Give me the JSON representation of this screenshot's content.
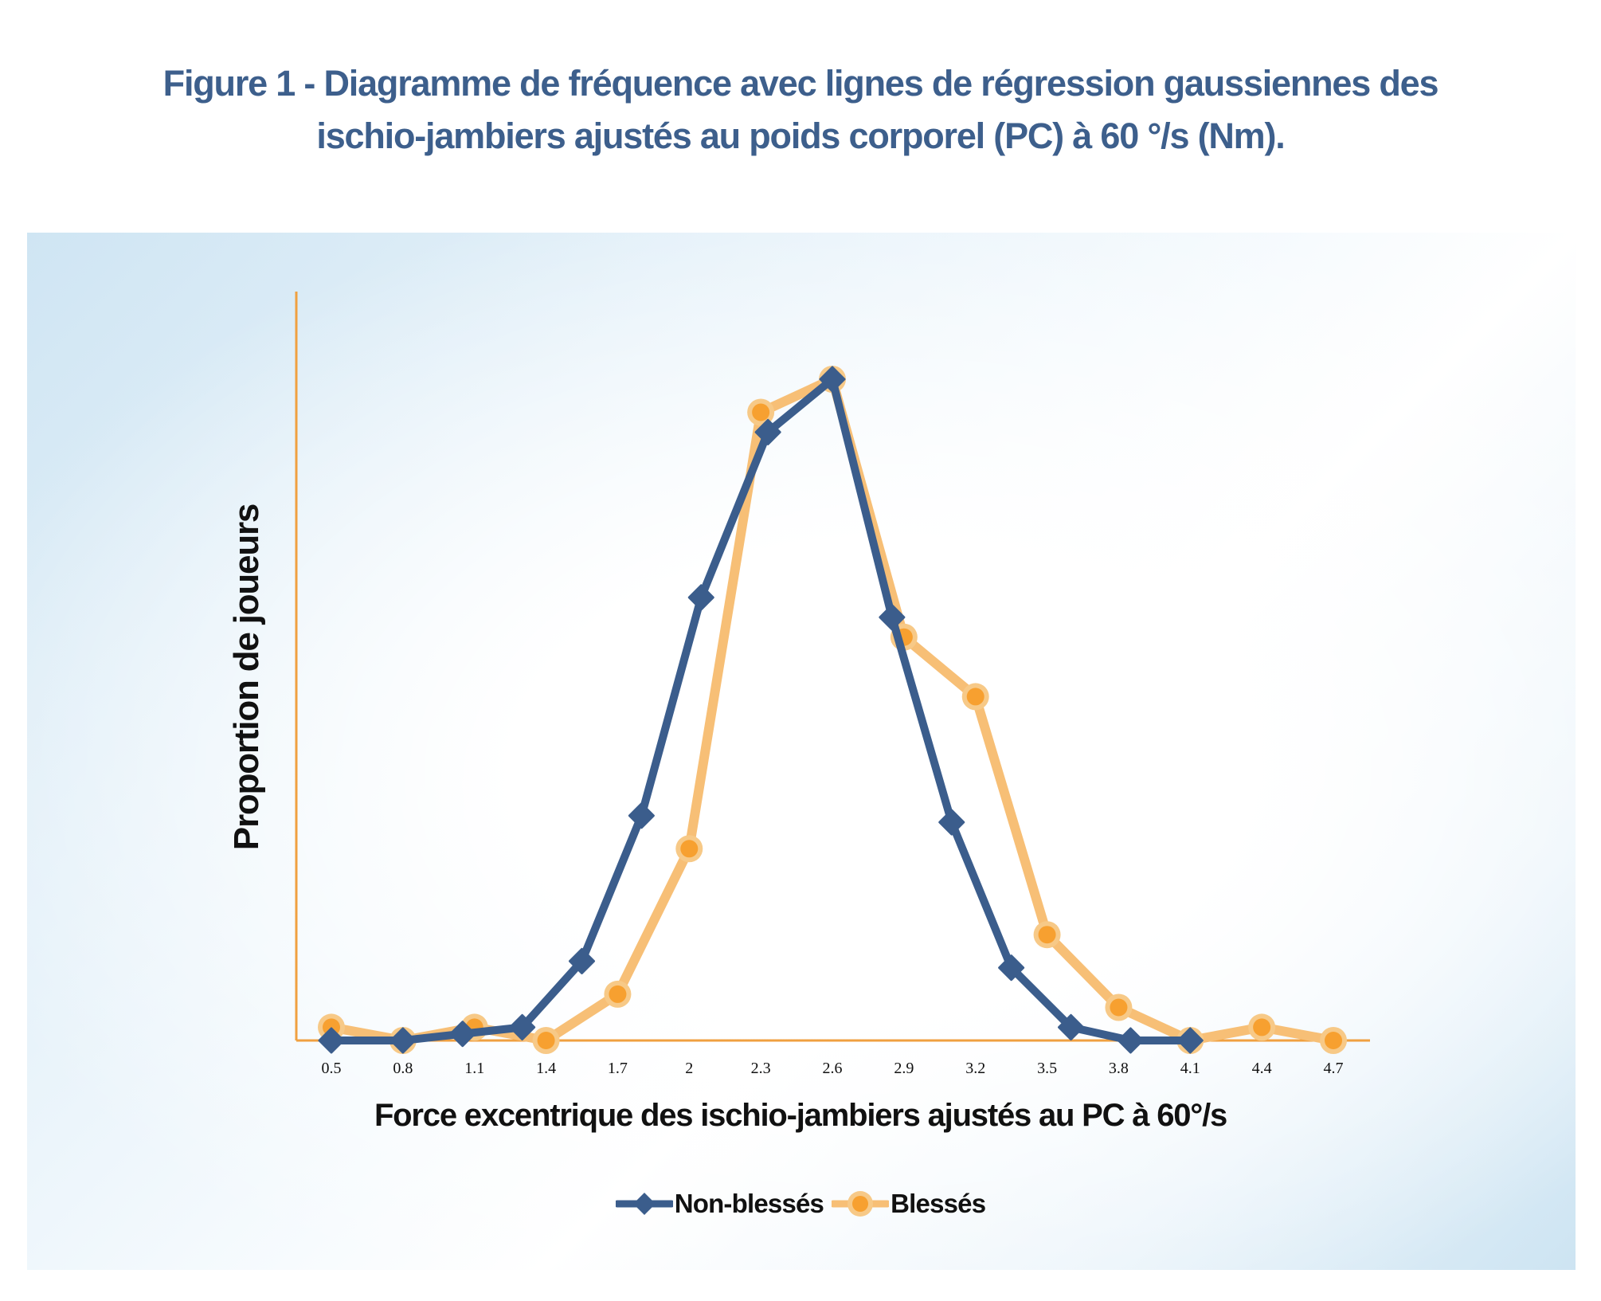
{
  "chart_data": {
    "type": "line",
    "title": "Figure 1 - Diagramme de fréquence avec lignes de régression gaussiennes des ischio-jambiers ajustés au poids corporel (PC) à 60 °/s (Nm).",
    "title_lines": [
      "Figure 1 - Diagramme de fréquence avec lignes de régression gaussiennes des",
      "ischio-jambiers ajustés au poids corporel (PC) à 60 °/s (Nm)."
    ],
    "xlabel": "Force excentrique des ischio-jambiers ajustés au PC à 60°/s",
    "ylabel": "Proportion de joueurs",
    "x_ticks": [
      "0.5",
      "0.8",
      "1.1",
      "1.4",
      "1.7",
      "2",
      "2.3",
      "2.6",
      "2.9",
      "3.2",
      "3.5",
      "3.8",
      "4.1",
      "4.4",
      "4.7"
    ],
    "xlim": [
      0.5,
      4.7
    ],
    "ylim": [
      0,
      1.0
    ],
    "grid": false,
    "legend_position": "bottom",
    "series": [
      {
        "name": "Non-blessés",
        "color": "#3b5d8c",
        "marker": "diamond",
        "x": [
          0.5,
          0.8,
          1.05,
          1.3,
          1.55,
          1.8,
          2.05,
          2.33,
          2.6,
          2.85,
          3.1,
          3.35,
          3.6,
          3.85,
          4.1
        ],
        "y": [
          0.0,
          0.0,
          0.01,
          0.02,
          0.12,
          0.34,
          0.67,
          0.92,
          1.0,
          0.64,
          0.33,
          0.11,
          0.02,
          0.0,
          0.0
        ]
      },
      {
        "name": "Blessés",
        "color": "#f7a030",
        "line_color": "#f7bf76",
        "marker": "circle",
        "x": [
          0.5,
          0.8,
          1.1,
          1.4,
          1.7,
          2.0,
          2.3,
          2.6,
          2.9,
          3.2,
          3.5,
          3.8,
          4.1,
          4.4,
          4.7
        ],
        "y": [
          0.02,
          0.0,
          0.02,
          0.0,
          0.07,
          0.29,
          0.95,
          1.0,
          0.61,
          0.52,
          0.16,
          0.05,
          0.0,
          0.02,
          0.0
        ]
      }
    ]
  },
  "axis_color": "#f0a040",
  "background_gradient": [
    "#cfe5f3",
    "#ffffff"
  ]
}
